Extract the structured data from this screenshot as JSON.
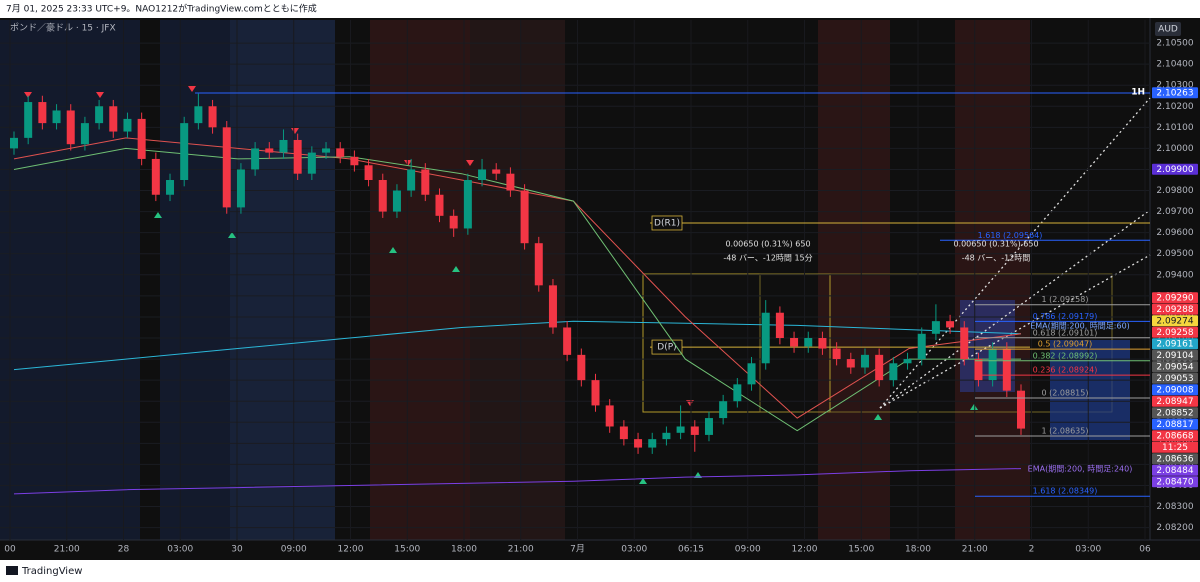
{
  "header": {
    "created": "7月 01, 2025 23:33 UTC+9。NAO1212がTradingView.comとともに作成",
    "brand": "TradingView"
  },
  "chart_data": {
    "type": "candlestick",
    "title": "ポンド／豪ドル · 15 · JFX",
    "currency": "AUD",
    "up_color": "#089981",
    "down_color": "#f23645",
    "ylim": [
      2.0807,
      2.106
    ],
    "grid": true,
    "yticks": [
      {
        "value": 2.082,
        "label": "2.08200"
      },
      {
        "value": 2.083,
        "label": "2.08300"
      },
      {
        "value": 2.084,
        "label": "2.08400"
      },
      {
        "value": 2.085,
        "label": "2.08500"
      },
      {
        "value": 2.086,
        "label": "2.08600"
      },
      {
        "value": 2.087,
        "label": "2.08700"
      },
      {
        "value": 2.088,
        "label": "2.08800"
      },
      {
        "value": 2.089,
        "label": "2.08900"
      },
      {
        "value": 2.09,
        "label": "2.09000"
      },
      {
        "value": 2.091,
        "label": "2.09100"
      },
      {
        "value": 2.092,
        "label": "2.09200"
      },
      {
        "value": 2.093,
        "label": "2.09300"
      },
      {
        "value": 2.094,
        "label": "2.09400"
      },
      {
        "value": 2.095,
        "label": "2.09500"
      },
      {
        "value": 2.096,
        "label": "2.09600"
      },
      {
        "value": 2.097,
        "label": "2.09700"
      },
      {
        "value": 2.098,
        "label": "2.09800"
      },
      {
        "value": 2.099,
        "label": "2.09900"
      },
      {
        "value": 2.1,
        "label": "2.10000"
      },
      {
        "value": 2.101,
        "label": "2.10100"
      },
      {
        "value": 2.102,
        "label": "2.10200"
      },
      {
        "value": 2.103,
        "label": "2.10300"
      },
      {
        "value": 2.104,
        "label": "2.10400"
      },
      {
        "value": 2.105,
        "label": "2.10500"
      }
    ],
    "x_labels": [
      "00",
      "21:00",
      "28",
      "03:00",
      "30",
      "09:00",
      "12:00",
      "15:00",
      "18:00",
      "21:00",
      "7月",
      "03:00",
      "06:15",
      "09:00",
      "12:00",
      "15:00",
      "18:00",
      "21:00",
      "2",
      "03:00",
      "06"
    ],
    "ohlc": [
      [
        2.1,
        2.1008,
        2.0997,
        2.1005
      ],
      [
        2.1005,
        2.1025,
        2.1002,
        2.1022
      ],
      [
        2.1022,
        2.1025,
        2.1009,
        2.1012
      ],
      [
        2.1012,
        2.1021,
        2.1009,
        2.1018
      ],
      [
        2.1018,
        2.1021,
        2.0999,
        2.1002
      ],
      [
        2.1002,
        2.1015,
        2.0999,
        2.1012
      ],
      [
        2.1012,
        2.1023,
        2.1009,
        2.102
      ],
      [
        2.102,
        2.1023,
        2.1005,
        2.1008
      ],
      [
        2.1008,
        2.1017,
        2.1005,
        2.1014
      ],
      [
        2.1014,
        2.1017,
        2.0992,
        2.0995
      ],
      [
        2.0995,
        2.0998,
        2.0975,
        2.0978
      ],
      [
        2.0978,
        2.0988,
        2.0975,
        2.0985
      ],
      [
        2.0985,
        2.1015,
        2.0982,
        2.1012
      ],
      [
        2.1012,
        2.1026,
        2.1009,
        2.102
      ],
      [
        2.102,
        2.1023,
        2.1007,
        2.101
      ],
      [
        2.101,
        2.1013,
        2.0969,
        2.0972
      ],
      [
        2.0972,
        2.0993,
        2.0969,
        2.099
      ],
      [
        2.099,
        2.1003,
        2.0987,
        2.1
      ],
      [
        2.1,
        2.1003,
        2.0995,
        2.0998
      ],
      [
        2.0998,
        2.1009,
        2.0995,
        2.1004
      ],
      [
        2.1004,
        2.1007,
        2.0985,
        2.0988
      ],
      [
        2.0988,
        2.1001,
        2.0985,
        2.0998
      ],
      [
        2.0998,
        2.1003,
        2.0995,
        2.1
      ],
      [
        2.1,
        2.1003,
        2.0993,
        2.0996
      ],
      [
        2.0996,
        2.0999,
        2.0989,
        2.0992
      ],
      [
        2.0992,
        2.0995,
        2.0982,
        2.0985
      ],
      [
        2.0985,
        2.0988,
        2.0967,
        2.097
      ],
      [
        2.097,
        2.0983,
        2.0967,
        2.098
      ],
      [
        2.098,
        2.0995,
        2.0977,
        2.099
      ],
      [
        2.099,
        2.0993,
        2.0975,
        2.0978
      ],
      [
        2.0978,
        2.0981,
        2.0965,
        2.0968
      ],
      [
        2.0968,
        2.0971,
        2.0958,
        2.0962
      ],
      [
        2.0962,
        2.0988,
        2.0959,
        2.0985
      ],
      [
        2.0985,
        2.0995,
        2.0982,
        2.099
      ],
      [
        2.099,
        2.0993,
        2.0985,
        2.0988
      ],
      [
        2.0988,
        2.0991,
        2.0977,
        2.098
      ],
      [
        2.098,
        2.0983,
        2.0952,
        2.0955
      ],
      [
        2.0955,
        2.0958,
        2.0932,
        2.0935
      ],
      [
        2.0935,
        2.0938,
        2.0912,
        2.0915
      ],
      [
        2.0915,
        2.0918,
        2.0899,
        2.0902
      ],
      [
        2.0902,
        2.0905,
        2.0887,
        2.089
      ],
      [
        2.089,
        2.0893,
        2.0875,
        2.0878
      ],
      [
        2.0878,
        2.0881,
        2.0865,
        2.0868
      ],
      [
        2.0868,
        2.0871,
        2.0859,
        2.0862
      ],
      [
        2.0862,
        2.0865,
        2.0855,
        2.0858
      ],
      [
        2.0858,
        2.0865,
        2.0855,
        2.0862
      ],
      [
        2.0862,
        2.0868,
        2.0859,
        2.0865
      ],
      [
        2.0865,
        2.0878,
        2.0862,
        2.0868
      ],
      [
        2.0868,
        2.0871,
        2.0856,
        2.0864
      ],
      [
        2.0864,
        2.0875,
        2.0861,
        2.0872
      ],
      [
        2.0872,
        2.0883,
        2.0869,
        2.088
      ],
      [
        2.088,
        2.0891,
        2.0877,
        2.0888
      ],
      [
        2.0888,
        2.0901,
        2.0885,
        2.0898
      ],
      [
        2.0898,
        2.0928,
        2.0895,
        2.0922
      ],
      [
        2.0922,
        2.0925,
        2.0907,
        2.091
      ],
      [
        2.091,
        2.0913,
        2.0903,
        2.0906
      ],
      [
        2.0906,
        2.0913,
        2.0903,
        2.091
      ],
      [
        2.091,
        2.0913,
        2.0902,
        2.0905
      ],
      [
        2.0905,
        2.0908,
        2.0897,
        2.09
      ],
      [
        2.09,
        2.0903,
        2.0893,
        2.0896
      ],
      [
        2.0896,
        2.0905,
        2.0893,
        2.0902
      ],
      [
        2.0902,
        2.0905,
        2.0887,
        2.089
      ],
      [
        2.089,
        2.0901,
        2.0887,
        2.0898
      ],
      [
        2.0898,
        2.0903,
        2.0895,
        2.09
      ],
      [
        2.09,
        2.0915,
        2.0897,
        2.0912
      ],
      [
        2.0912,
        2.0926,
        2.0909,
        2.0918
      ],
      [
        2.0918,
        2.0921,
        2.0912,
        2.0915
      ],
      [
        2.0915,
        2.0918,
        2.0897,
        2.09
      ],
      [
        2.09,
        2.0903,
        2.0887,
        2.089
      ],
      [
        2.089,
        2.0908,
        2.0887,
        2.0905
      ],
      [
        2.0905,
        2.0908,
        2.0882,
        2.0885
      ],
      [
        2.0885,
        2.0888,
        2.0864,
        2.0867
      ]
    ],
    "series": [
      {
        "color": "#2bb7d8",
        "values": [
          2.0895,
          2.09,
          2.0905,
          2.091,
          2.0915,
          2.0918,
          2.0917,
          2.0916,
          2.0914,
          2.0912
        ]
      },
      {
        "color": "#7b3fe4",
        "values": [
          2.0836,
          2.0838,
          2.0839,
          2.084,
          2.0841,
          2.0842,
          2.0844,
          2.0845,
          2.0847,
          2.0848
        ]
      },
      {
        "color": "#e0524f",
        "values": [
          2.0995,
          2.1005,
          2.1,
          2.0995,
          2.0985,
          2.0975,
          2.092,
          2.0872,
          2.0905,
          2.0912
        ]
      },
      {
        "color": "#6fbf73",
        "values": [
          2.099,
          2.1,
          2.0995,
          2.0996,
          2.0988,
          2.0975,
          2.09,
          2.0866,
          2.09,
          2.09
        ]
      }
    ],
    "levels": [
      {
        "value": 2.10263,
        "label": "1H",
        "color": "#2962ff"
      },
      {
        "value": 2.09646,
        "label": "D(R1)",
        "color": "#d4b13a"
      },
      {
        "value": 2.09057,
        "label": "D(P)",
        "color": "#d4b13a"
      }
    ],
    "fib_levels": [
      {
        "value": 2.09564,
        "label": "1.618 (2.09564)",
        "color": "#2962ff"
      },
      {
        "value": 2.09258,
        "label": "1 (2.09258)",
        "color": "#9e9e9e"
      },
      {
        "value": 2.09179,
        "label": "0.786 (2.09179)",
        "color": "#2962ff"
      },
      {
        "value": 2.09101,
        "label": "0.618 (2.09101)",
        "color": "#9e9e9e"
      },
      {
        "value": 2.09047,
        "label": "0.5 (2.09047)",
        "color": "#e0a030"
      },
      {
        "value": 2.08992,
        "label": "0.382 (2.08992)",
        "color": "#6fbf73"
      },
      {
        "value": 2.08924,
        "label": "0.236 (2.08924)",
        "color": "#f23645"
      },
      {
        "value": 2.08815,
        "label": "0 (2.08815)",
        "color": "#9e9e9e"
      },
      {
        "value": 2.08635,
        "label": "1 (2.08635)",
        "color": "#9e9e9e"
      },
      {
        "value": 2.08349,
        "label": "1.618 (2.08349)",
        "color": "#2962ff"
      }
    ],
    "annotations": [
      "0.00650 (0.31%) 650",
      "-48 バー、-12時間 15分",
      "0.00650 (0.31%) 650",
      "-48 バー、-12時間",
      "EMA(期間:200, 時間足:60)",
      "EMA(期間:200, 時間足:240)"
    ],
    "price_tags": [
      {
        "value": 2.10263,
        "label": "2.10263",
        "color": "#2962ff"
      },
      {
        "value": 2.099,
        "label": "2.09900",
        "color": "#5b2fd6"
      },
      {
        "value": 2.0929,
        "label": "2.09290",
        "color": "#f23645"
      },
      {
        "value": 2.09288,
        "label": "2.09288",
        "color": "#f23645"
      },
      {
        "value": 2.09274,
        "label": "2.09274",
        "color": "#f5d63d"
      },
      {
        "value": 2.09258,
        "label": "2.09258",
        "color": "#f23645"
      },
      {
        "value": 2.09161,
        "label": "2.09161",
        "color": "#22a6c8"
      },
      {
        "value": 2.09104,
        "label": "2.09104",
        "color": "#555555"
      },
      {
        "value": 2.09054,
        "label": "2.09054",
        "color": "#555555"
      },
      {
        "value": 2.09053,
        "label": "2.09053",
        "color": "#555555"
      },
      {
        "value": 2.09008,
        "label": "2.09008",
        "color": "#2962ff"
      },
      {
        "value": 2.08947,
        "label": "2.08947",
        "color": "#f23645"
      },
      {
        "value": 2.08852,
        "label": "2.08852",
        "color": "#555555"
      },
      {
        "value": 2.08817,
        "label": "2.08817",
        "color": "#2962ff"
      },
      {
        "value": 2.08668,
        "label": "2.08668",
        "color": "#f23645"
      },
      {
        "value": 2.08636,
        "label": "2.08636",
        "color": "#555555"
      },
      {
        "value": 2.08484,
        "label": "2.08484",
        "color": "#7b3fe4"
      },
      {
        "value": 2.0847,
        "label": "2.08470",
        "color": "#7b3fe4"
      }
    ],
    "countdown": "11:25"
  }
}
